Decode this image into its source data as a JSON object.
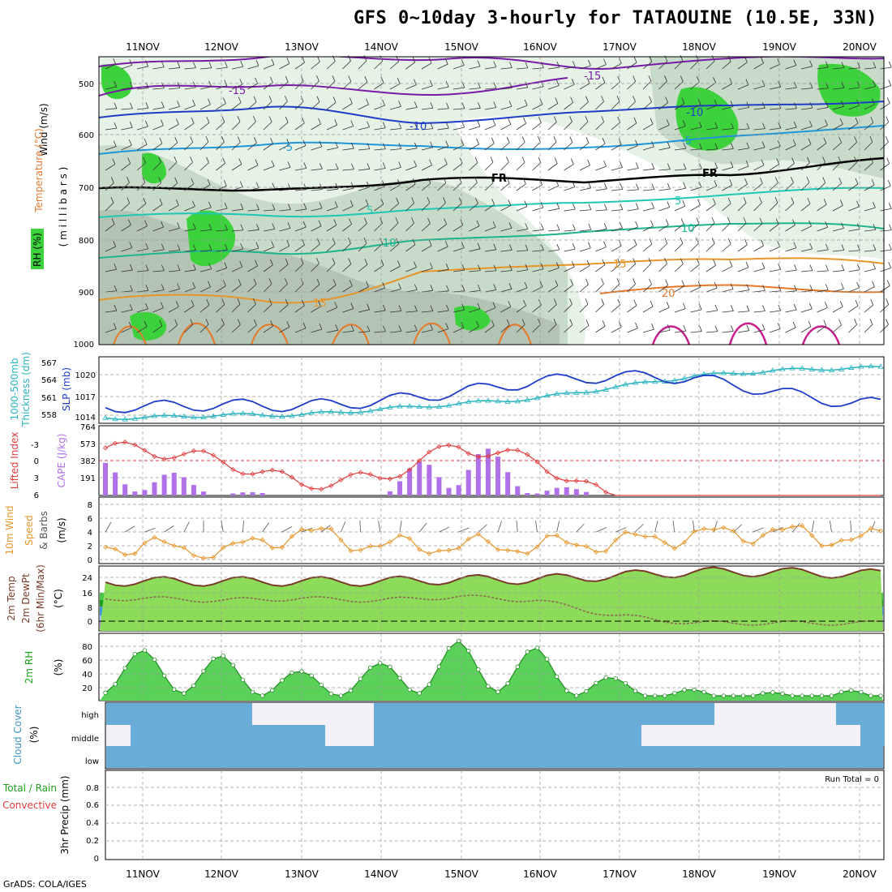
{
  "title": "GFS 0~10day 3-hourly for TATAOUINE (10.5E, 33N)",
  "credit": "GrADS: COLA/IGES",
  "days": [
    "11NOV",
    "12NOV",
    "13NOV",
    "14NOV",
    "15NOV",
    "16NOV",
    "17NOV",
    "18NOV",
    "19NOV",
    "20NOV"
  ],
  "colors": {
    "rh_light": "#e6f2e6",
    "rh_mid": "#c8dac8",
    "rh_dark": "#b4c4b4",
    "rh_green": "#3cd23c",
    "slp": "#1e3cc8",
    "thickness": "#2ab4c0",
    "lifted": "#e03c3c",
    "cape": "#b070e8",
    "wind": "#e6962a",
    "barb": "#555555",
    "rh2m": "#1ea01e",
    "cloud": "#6aacd8",
    "cloud_bg": "#f4f0f8",
    "grid": "#999999"
  },
  "panels": {
    "upper": {
      "labels": {
        "wind": "Wind (m/s)",
        "temperature": "Temperature (°C)",
        "rh": "RH (%)",
        "pressure": "( m i l l i b a r s )"
      },
      "y_ticks": [
        "500",
        "600",
        "700",
        "800",
        "900",
        "1000"
      ],
      "contour_labels": [
        "-15",
        "-15",
        "-10",
        "-10",
        "-5",
        "-5",
        "FR",
        "FR",
        "5",
        "5",
        "10",
        "10",
        "15",
        "15",
        "20"
      ]
    },
    "slp": {
      "label_left": "1000-500mb",
      "label_left2": "Thickness (dm)",
      "label_right": "SLP (mb)",
      "y_ticks_left": [
        "567",
        "564",
        "561",
        "558"
      ],
      "y_ticks_right": [
        "1020",
        "1017",
        "1014"
      ]
    },
    "cape": {
      "label_left": "Lifted Index",
      "label_right": "CAPE (J/kg)",
      "y_ticks_left": [
        "-3",
        "0",
        "3",
        "6"
      ],
      "y_ticks_right": [
        "764",
        "573",
        "382",
        "191"
      ]
    },
    "wind10m": {
      "label1": "10m Wind",
      "label2": "Speed",
      "label3": "& Barbs",
      "label4": "(m/s)",
      "y_ticks": [
        "8",
        "6",
        "4",
        "2",
        "0"
      ]
    },
    "temp2m": {
      "label1": "2m Temp",
      "label2": "2m DewPt",
      "label3": "(6hr Min/Max)",
      "label4": "(°C)",
      "y_ticks": [
        "24",
        "16",
        "8",
        "0"
      ]
    },
    "rh2m": {
      "label1": "2m RH",
      "label2": "(%)",
      "y_ticks": [
        "80",
        "60",
        "40",
        "20"
      ]
    },
    "cloud": {
      "label1": "Cloud Cover",
      "label2": "(%)",
      "levels": [
        "high",
        "middle",
        "low"
      ]
    },
    "precip": {
      "label1": "Total / Rain",
      "label2": "Convective",
      "label3": "3hr Precip (mm)",
      "run_total": "Run Total = 0",
      "y_ticks": [
        "0.8",
        "0.6",
        "0.4",
        "0.2",
        "0"
      ]
    }
  },
  "chart_data": [
    {
      "type": "line",
      "name": "sea_level_pressure",
      "x": [
        "11NOV",
        "12NOV",
        "13NOV",
        "14NOV",
        "15NOV",
        "16NOV",
        "17NOV",
        "18NOV",
        "19NOV",
        "20NOV"
      ],
      "series": [
        {
          "name": "SLP (mb)",
          "values": [
            1015.5,
            1015.8,
            1015.6,
            1016.3,
            1017.7,
            1019.3,
            1020.1,
            1019.8,
            1017.8,
            1016.0
          ]
        },
        {
          "name": "1000-500mb Thickness (dm)",
          "values": [
            557.0,
            557.5,
            557.5,
            558.5,
            559.5,
            560.5,
            562.5,
            564.5,
            565.5,
            566.0
          ]
        }
      ],
      "ylim_left": [
        556,
        568
      ],
      "ylim_right": [
        1013,
        1023
      ]
    },
    {
      "type": "bar",
      "name": "cape_lifted_index",
      "x": [
        "11NOV",
        "12NOV",
        "13NOV",
        "14NOV",
        "15NOV",
        "16NOV",
        "17NOV",
        "18NOV",
        "19NOV",
        "20NOV"
      ],
      "series": [
        {
          "name": "CAPE (J/kg)",
          "values": [
            380,
            60,
            0,
            0,
            764,
            150,
            0,
            0,
            0,
            0
          ]
        },
        {
          "name": "Lifted Index",
          "values": [
            -2.0,
            0.0,
            4.0,
            3.0,
            -2.5,
            0.0,
            7.0,
            8.0,
            8.0,
            8.0
          ]
        }
      ],
      "ylim_cape": [
        0,
        764
      ],
      "ylim_li": [
        6,
        -6
      ]
    },
    {
      "type": "line",
      "name": "wind_10m",
      "x": [
        "11NOV",
        "12NOV",
        "13NOV",
        "14NOV",
        "15NOV",
        "16NOV",
        "17NOV",
        "18NOV",
        "19NOV",
        "20NOV"
      ],
      "series": [
        {
          "name": "Speed (m/s)",
          "values": [
            2.0,
            1.0,
            4.0,
            2.0,
            2.0,
            2.0,
            2.5,
            3.5,
            4.0,
            3.0
          ]
        }
      ],
      "ylim": [
        0,
        9
      ]
    },
    {
      "type": "area",
      "name": "temp_2m",
      "x": [
        "11NOV",
        "12NOV",
        "13NOV",
        "14NOV",
        "15NOV",
        "16NOV",
        "17NOV",
        "18NOV",
        "19NOV",
        "20NOV"
      ],
      "series": [
        {
          "name": "2m Temp (°C)",
          "values": [
            21,
            21,
            21,
            21,
            22,
            22,
            24,
            26,
            26,
            25
          ]
        },
        {
          "name": "2m DewPt (°C)",
          "values": [
            12,
            11,
            12,
            11,
            13,
            11,
            3,
            -1,
            -1,
            -1
          ]
        }
      ],
      "ylim": [
        -4,
        30
      ]
    },
    {
      "type": "area",
      "name": "rh_2m",
      "x": [
        "11NOV",
        "12NOV",
        "13NOV",
        "14NOV",
        "15NOV",
        "16NOV",
        "17NOV",
        "18NOV",
        "19NOV",
        "20NOV"
      ],
      "series": [
        {
          "name": "2m RH (%)",
          "values": [
            80,
            72,
            48,
            60,
            94,
            84,
            38,
            21,
            17,
            20
          ]
        }
      ],
      "ylim": [
        0,
        100
      ]
    },
    {
      "type": "bar",
      "name": "precip_3hr",
      "x": [
        "11NOV",
        "12NOV",
        "13NOV",
        "14NOV",
        "15NOV",
        "16NOV",
        "17NOV",
        "18NOV",
        "19NOV",
        "20NOV"
      ],
      "series": [
        {
          "name": "3hr Precip (mm)",
          "values": [
            0,
            0,
            0,
            0,
            0,
            0,
            0,
            0,
            0,
            0
          ]
        }
      ],
      "ylim": [
        0,
        1.0
      ]
    }
  ]
}
